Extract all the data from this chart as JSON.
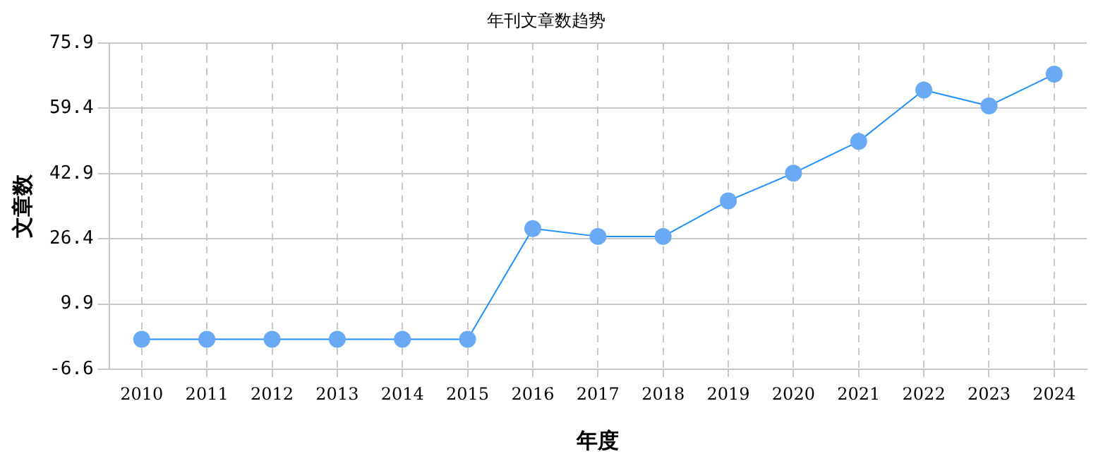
{
  "chart_data": {
    "type": "line",
    "title": "年刊文章数趋势",
    "xlabel": "年度",
    "ylabel": "文章数",
    "categories": [
      "2010",
      "2011",
      "2012",
      "2013",
      "2014",
      "2015",
      "2016",
      "2017",
      "2018",
      "2019",
      "2020",
      "2021",
      "2022",
      "2023",
      "2024"
    ],
    "series": [
      {
        "color": "#1e90ff",
        "values": [
          1,
          1,
          1,
          1,
          1,
          1,
          29,
          27,
          27,
          36,
          43,
          51,
          64,
          60,
          68
        ]
      }
    ],
    "ylim": [
      -6.6,
      75.9
    ],
    "yticks": [
      -6.6,
      9.9,
      26.4,
      42.9,
      59.4,
      75.9
    ],
    "grid": true,
    "marker": "circle",
    "line_style": "solid",
    "legend": false
  }
}
